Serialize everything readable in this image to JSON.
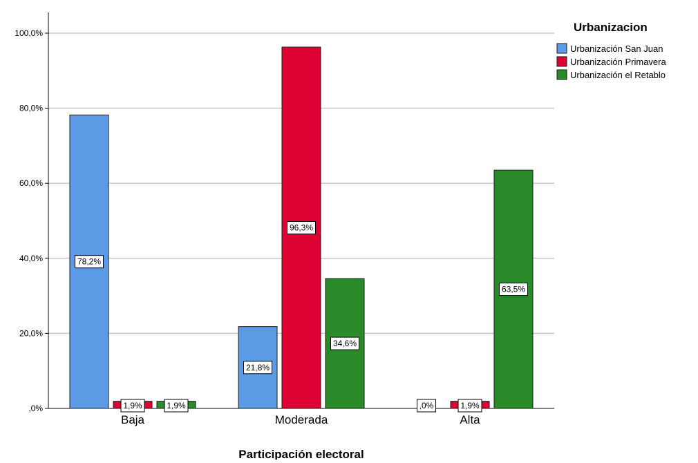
{
  "chart_data": {
    "type": "bar",
    "title": "",
    "xlabel": "Participación electoral",
    "ylabel": "",
    "categories": [
      "Baja",
      "Moderada",
      "Alta"
    ],
    "series": [
      {
        "name": "Urbanización San Juan",
        "values": [
          78.2,
          21.8,
          0.0
        ],
        "labels": [
          "78,2%",
          "21,8%",
          ",0%"
        ],
        "color": "#5B9BE6"
      },
      {
        "name": "Urbanización Primavera",
        "values": [
          1.9,
          96.3,
          1.9
        ],
        "labels": [
          "1,9%",
          "96,3%",
          "1,9%"
        ],
        "color": "#DC0333"
      },
      {
        "name": "Urbanización el Retablo",
        "values": [
          1.9,
          34.6,
          63.5
        ],
        "labels": [
          "1,9%",
          "34,6%",
          "63,5%"
        ],
        "color": "#2A8A2A"
      }
    ],
    "ylim": [
      0,
      100
    ],
    "yticks": [
      0,
      20,
      40,
      60,
      80,
      100
    ],
    "ytick_labels": [
      ",0%",
      "20,0%",
      "40,0%",
      "60,0%",
      "80,0%",
      "100,0%"
    ],
    "grid": true,
    "legend": {
      "title": "Urbanizacion",
      "position": "top-right"
    }
  }
}
